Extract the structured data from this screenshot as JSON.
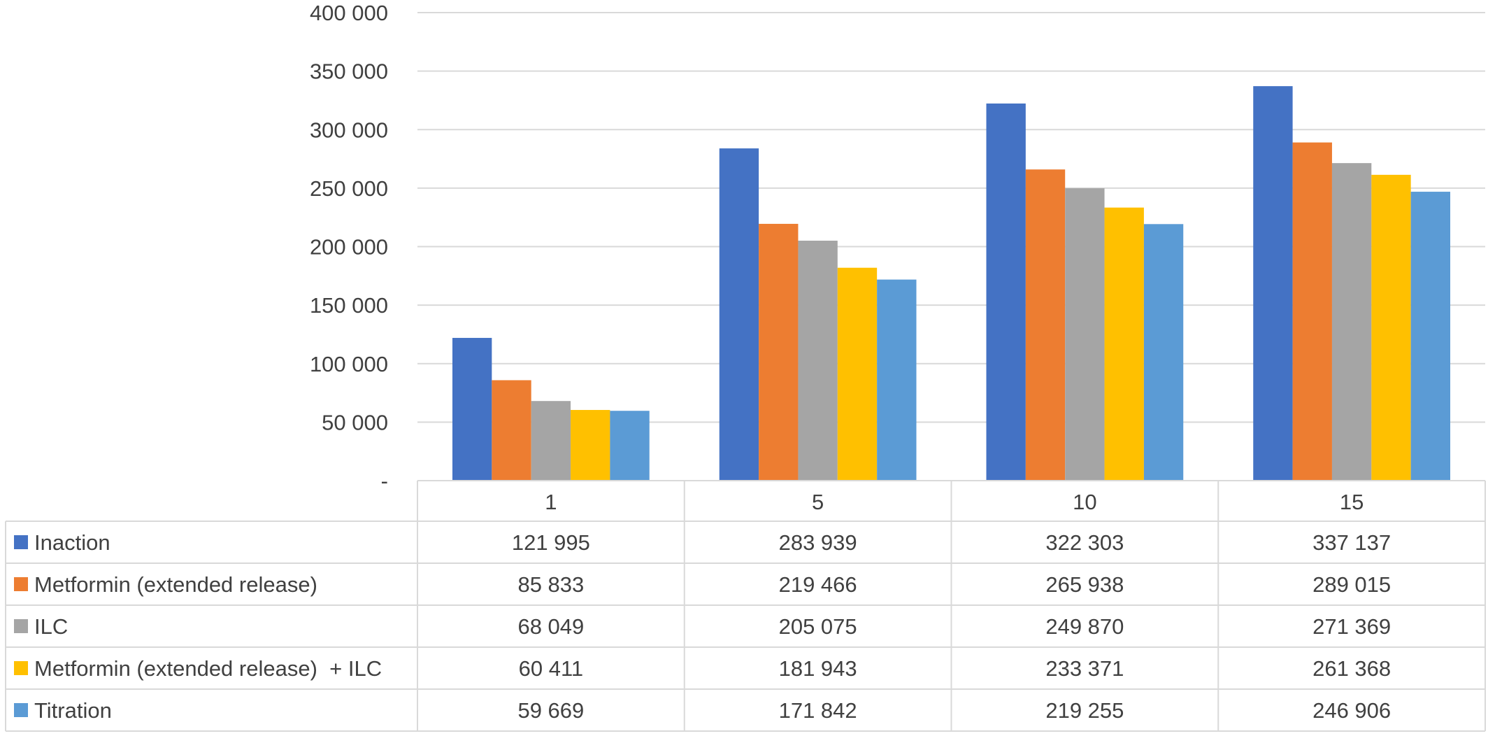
{
  "chart_data": {
    "type": "bar",
    "categories": [
      "1",
      "5",
      "10",
      "15"
    ],
    "ylim": [
      0,
      400000
    ],
    "yticks": [
      0,
      50000,
      100000,
      150000,
      200000,
      250000,
      300000,
      350000,
      400000
    ],
    "ytick_labels": [
      "-",
      "50 000",
      "100 000",
      "150 000",
      "200 000",
      "250 000",
      "300 000",
      "350 000",
      "400 000"
    ],
    "grid": true,
    "legend": "data-table",
    "series": [
      {
        "name": "Inaction",
        "color": "#4472C4",
        "values": [
          121995,
          283939,
          322303,
          337137
        ],
        "labels": [
          "121 995",
          "283 939",
          "322 303",
          "337 137"
        ]
      },
      {
        "name": "Metformin (extended release)",
        "color": "#ED7D31",
        "values": [
          85833,
          219466,
          265938,
          289015
        ],
        "labels": [
          "85 833",
          "219 466",
          "265 938",
          "289 015"
        ]
      },
      {
        "name": "ILC",
        "color": "#A5A5A5",
        "values": [
          68049,
          205075,
          249870,
          271369
        ],
        "labels": [
          "68 049",
          "205 075",
          "249 870",
          "271 369"
        ]
      },
      {
        "name": "Metformin (extended release)  + ILC",
        "color": "#FFC000",
        "values": [
          60411,
          181943,
          233371,
          261368
        ],
        "labels": [
          "60 411",
          "181 943",
          "233 371",
          "261 368"
        ]
      },
      {
        "name": "Titration",
        "color": "#5B9BD5",
        "values": [
          59669,
          171842,
          219255,
          246906
        ],
        "labels": [
          "59 669",
          "171 842",
          "219 255",
          "246 906"
        ]
      }
    ]
  }
}
